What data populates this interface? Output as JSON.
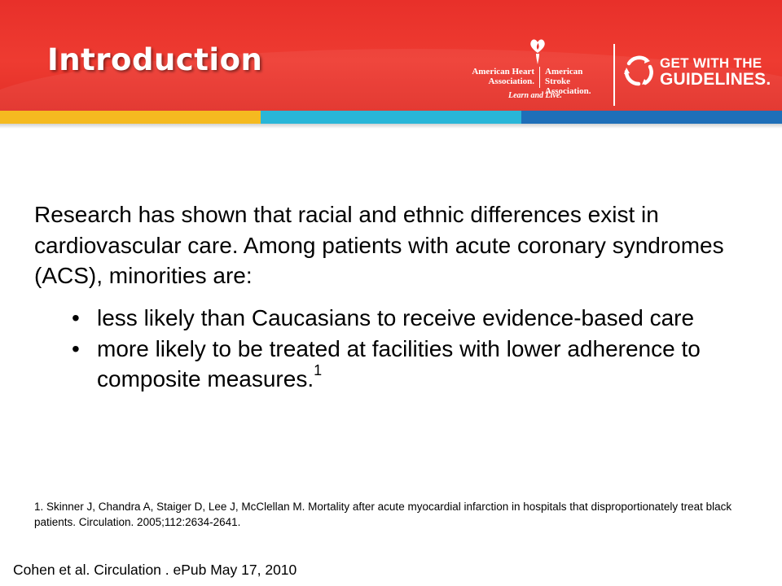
{
  "header": {
    "title": "Introduction",
    "aha_left_line1": "American Heart",
    "aha_left_line2": "Association.",
    "aha_right_line1": "American Stroke",
    "aha_right_line2": "Association.",
    "aha_tagline": "Learn and Live.",
    "gwtg_line1": "GET WITH THE",
    "gwtg_line2": "GUIDELINES."
  },
  "colors": {
    "header_red": "#ee3b31",
    "stripe_yellow": "#f5ba20",
    "stripe_cyan": "#29b6d8",
    "stripe_blue": "#1f6fb8"
  },
  "content": {
    "intro": "Research has shown that racial and ethnic differences exist in cardiovascular care. Among patients with acute coronary syndromes (ACS), minorities are:",
    "bullets": [
      {
        "marker": "•",
        "text": "less likely than Caucasians to receive evidence-based care",
        "sup": ""
      },
      {
        "marker": "•",
        "text": "more likely to be treated at facilities with lower adherence to composite measures.",
        "sup": "1"
      }
    ]
  },
  "footnote": "1. Skinner J, Chandra A, Staiger D, Lee J, McClellan M. Mortality after acute myocardial infarction in hospitals that disproportionately treat black patients. Circulation. 2005;112:2634-2641.",
  "citation": "Cohen et al. Circulation . ePub May 17, 2010",
  "icons": [
    "torch-heart-icon",
    "gwtg-circular-arrows-icon"
  ]
}
